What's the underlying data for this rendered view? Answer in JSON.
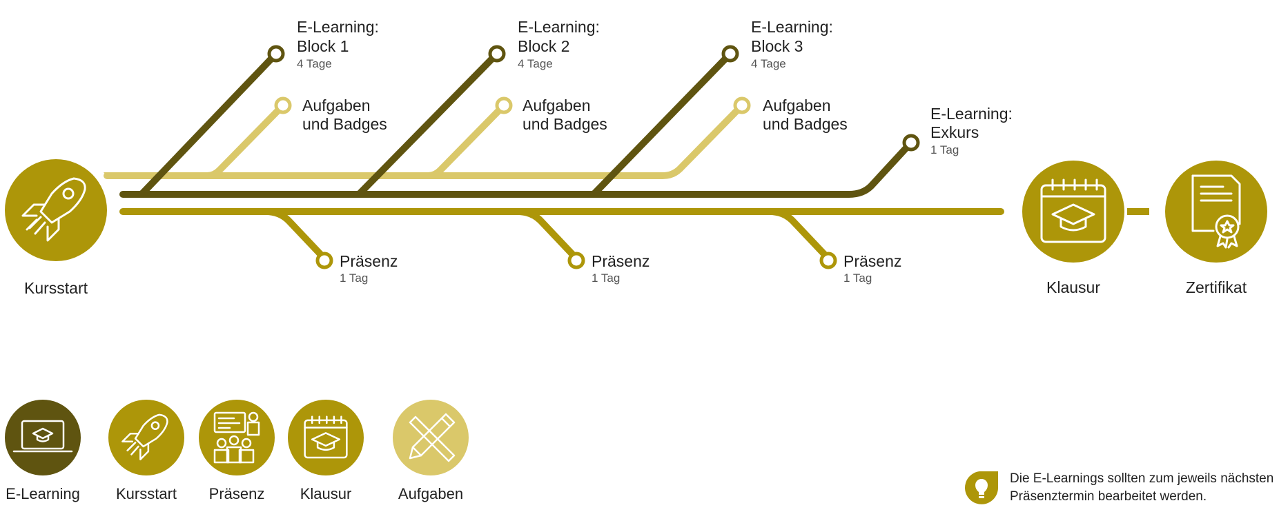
{
  "colors": {
    "elearning": "#5f5410",
    "aufgaben": "#dac86a",
    "praesenz": "#ad9609",
    "main": "#ad9609",
    "dark_circle": "#5f5410",
    "light_circle": "#dac86a"
  },
  "branches": {
    "block1": {
      "title1": "E-Learning:",
      "title2": "Block 1",
      "duration": "4 Tage"
    },
    "block2": {
      "title1": "E-Learning:",
      "title2": "Block 2",
      "duration": "4 Tage"
    },
    "block3": {
      "title1": "E-Learning:",
      "title2": "Block 3",
      "duration": "4 Tage"
    },
    "exkurs": {
      "title1": "E-Learning:",
      "title2": "Exkurs",
      "duration": "1 Tag"
    },
    "aufgaben1": {
      "line1": "Aufgaben",
      "line2": "und Badges"
    },
    "aufgaben2": {
      "line1": "Aufgaben",
      "line2": "und Badges"
    },
    "aufgaben3": {
      "line1": "Aufgaben",
      "line2": "und Badges"
    },
    "praesenz1": {
      "title": "Präsenz",
      "duration": "1 Tag"
    },
    "praesenz2": {
      "title": "Präsenz",
      "duration": "1 Tag"
    },
    "praesenz3": {
      "title": "Präsenz",
      "duration": "1 Tag"
    }
  },
  "nodes": {
    "kursstart": {
      "label": "Kursstart",
      "icon": "rocket-icon"
    },
    "klausur": {
      "label": "Klausur",
      "icon": "calendar-graduation-icon"
    },
    "zertifikat": {
      "label": "Zertifikat",
      "icon": "certificate-icon"
    }
  },
  "legend": [
    {
      "label": "E-Learning",
      "icon": "laptop-graduation-icon"
    },
    {
      "label": "Kursstart",
      "icon": "rocket-icon"
    },
    {
      "label": "Präsenz",
      "icon": "presentation-icon"
    },
    {
      "label": "Klausur",
      "icon": "calendar-graduation-icon"
    },
    {
      "label": "Aufgaben",
      "icon": "pencil-ruler-icon"
    }
  ],
  "hint": {
    "icon": "lightbulb-icon",
    "line1": "Die E-Learnings sollten zum jeweils nächsten",
    "line2": "Präsenztermin bearbeitet werden."
  }
}
